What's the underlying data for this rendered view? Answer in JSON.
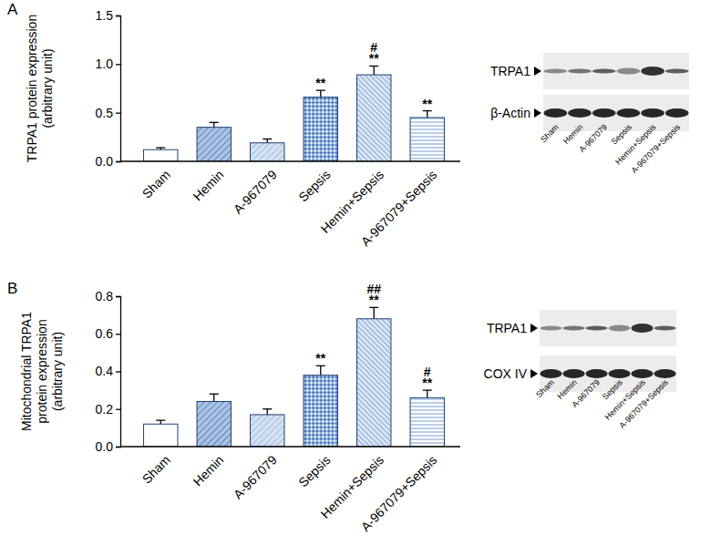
{
  "chart_data": [
    {
      "type": "bar",
      "panel": "A",
      "y_label": [
        "TRPA1 protein expression",
        "(arbitrary unit)"
      ],
      "categories": [
        "Sham",
        "Hemin",
        "A-967079",
        "Sepsis",
        "Hemin+Sepsis",
        "A-967079+Sepsis"
      ],
      "values": [
        0.12,
        0.35,
        0.19,
        0.66,
        0.89,
        0.45
      ],
      "error": [
        0.02,
        0.05,
        0.04,
        0.07,
        0.09,
        0.07
      ],
      "colors": [
        "#ffffff",
        "#a9c4e4",
        "#d4e2f2",
        "#4f7fc0",
        "#6f96cc",
        "#9bb8df"
      ],
      "ylim": [
        0,
        1.5
      ],
      "yticks": [
        {
          "value": 0,
          "label": "0.0"
        },
        {
          "value": 0.5,
          "label": "0.5"
        },
        {
          "value": 1,
          "label": "1.0"
        },
        {
          "value": 1.5,
          "label": "1.5"
        }
      ],
      "annotations": [
        {
          "index": 3,
          "lines": [
            "**"
          ]
        },
        {
          "index": 4,
          "lines": [
            "#",
            "**"
          ]
        },
        {
          "index": 5,
          "lines": [
            "**"
          ]
        }
      ],
      "blot_labels": [
        "TRPA1",
        "β-Actin"
      ]
    },
    {
      "type": "bar",
      "panel": "B",
      "y_label": [
        "Mitochondrial TRPA1",
        "protein expression",
        "(arbitrary unit)"
      ],
      "categories": [
        "Sham",
        "Hemin",
        "A-967079",
        "Sepsis",
        "Hemin+Sepsis",
        "A-967079+Sepsis"
      ],
      "values": [
        0.12,
        0.24,
        0.17,
        0.38,
        0.68,
        0.26
      ],
      "error": [
        0.02,
        0.04,
        0.03,
        0.05,
        0.06,
        0.04
      ],
      "colors": [
        "#ffffff",
        "#a9c4e4",
        "#d4e2f2",
        "#4f7fc0",
        "#6f96cc",
        "#9bb8df"
      ],
      "ylim": [
        0,
        0.8
      ],
      "yticks": [
        {
          "value": 0,
          "label": "0.0"
        },
        {
          "value": 0.2,
          "label": "0.2"
        },
        {
          "value": 0.4,
          "label": "0.4"
        },
        {
          "value": 0.6,
          "label": "0.6"
        },
        {
          "value": 0.8,
          "label": "0.8"
        }
      ],
      "annotations": [
        {
          "index": 3,
          "lines": [
            "**"
          ]
        },
        {
          "index": 4,
          "lines": [
            "##",
            "**"
          ]
        },
        {
          "index": 5,
          "lines": [
            "#",
            "**"
          ]
        }
      ],
      "blot_labels": [
        "TRPA1",
        "COX IV"
      ]
    }
  ]
}
